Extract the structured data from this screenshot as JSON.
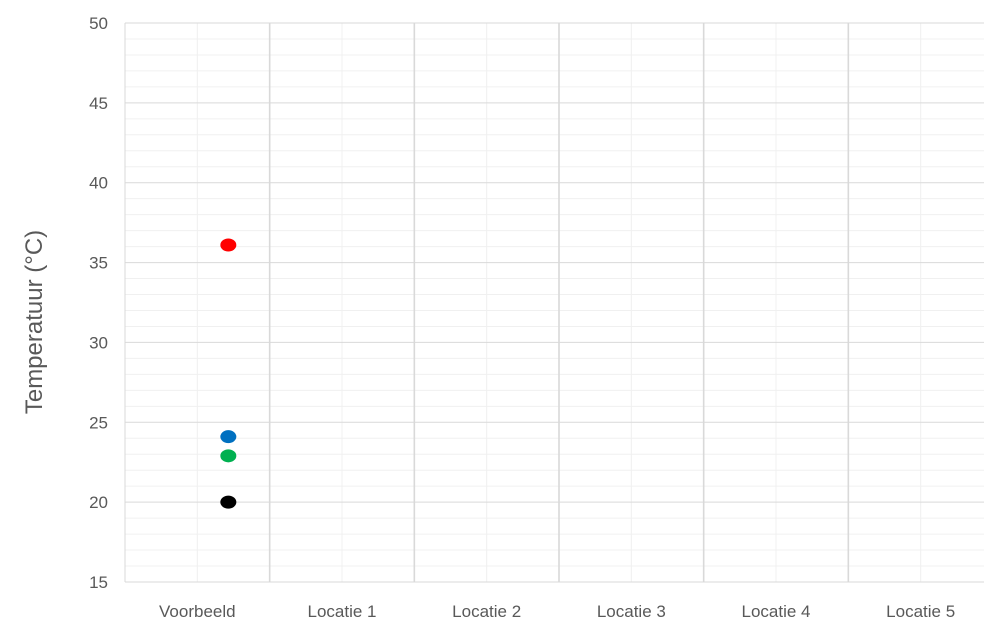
{
  "chart_data": {
    "type": "scatter",
    "title": "",
    "xlabel": "",
    "ylabel": "Temperatuur (°C)",
    "categories": [
      "Voorbeeld",
      "Locatie 1",
      "Locatie 2",
      "Locatie 3",
      "Locatie 4",
      "Locatie 5"
    ],
    "ylim": [
      15,
      50
    ],
    "yticks": [
      15,
      20,
      25,
      30,
      35,
      40,
      45,
      50
    ],
    "y_minor_step": 1,
    "grid": true,
    "legend": "none",
    "points": [
      {
        "category": "Voorbeeld",
        "y": 36.1,
        "color": "#ff0000"
      },
      {
        "category": "Voorbeeld",
        "y": 24.1,
        "color": "#0070c0"
      },
      {
        "category": "Voorbeeld",
        "y": 22.9,
        "color": "#00b050"
      },
      {
        "category": "Voorbeeld",
        "y": 20.0,
        "color": "#000000"
      }
    ]
  }
}
